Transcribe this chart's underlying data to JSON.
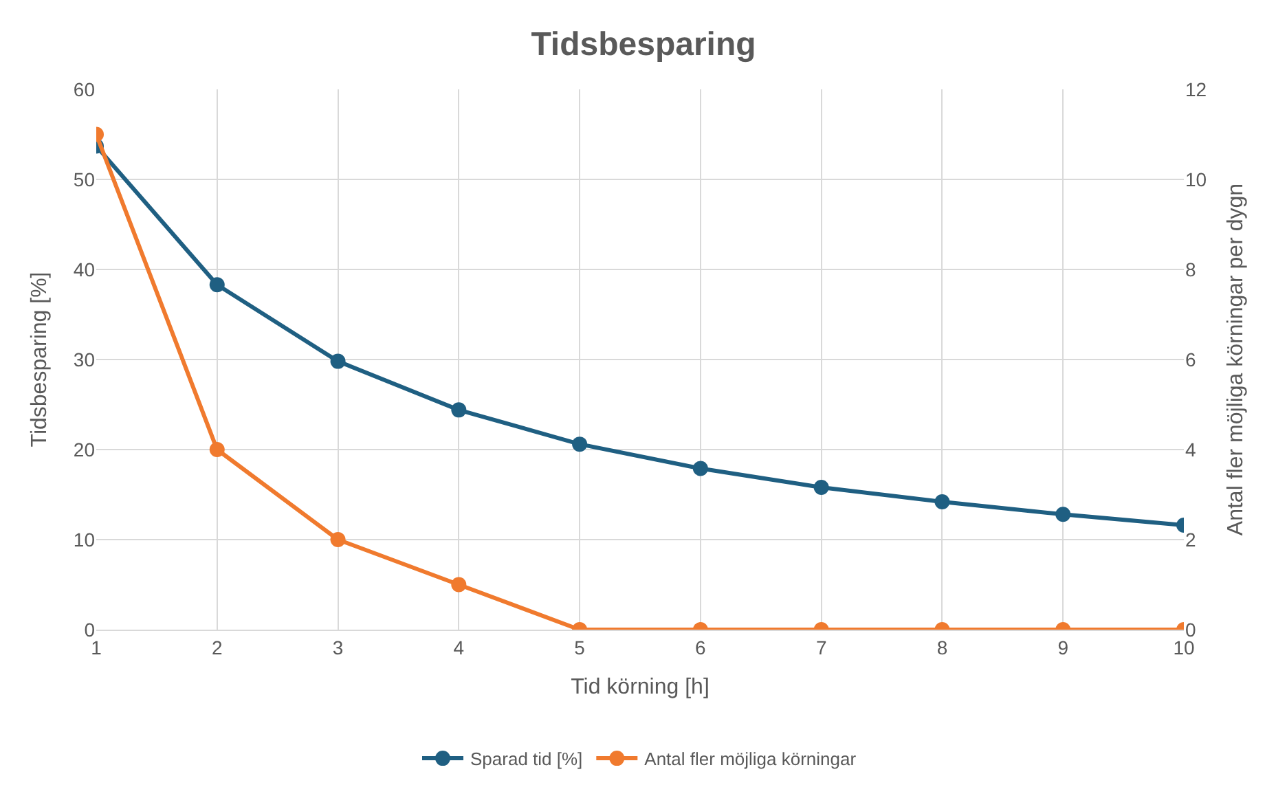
{
  "chart_data": {
    "type": "line",
    "title": "Tidsbesparing",
    "xlabel": "Tid körning [h]",
    "ylabel": "Tidsbesparing [%]",
    "y2label": "Antal fler möjliga körningar per dygn",
    "x": [
      1,
      2,
      3,
      4,
      5,
      6,
      7,
      8,
      9,
      10
    ],
    "series": [
      {
        "name": "Sparad tid [%]",
        "color": "#1f5f82",
        "values": [
          53.7,
          38.3,
          29.8,
          24.4,
          20.6,
          17.9,
          15.8,
          14.2,
          12.8,
          11.6
        ]
      },
      {
        "name": "Antal fler möjliga körningar",
        "color": "#f07a2e",
        "axis": "y2",
        "values": [
          11,
          4,
          2,
          1,
          0,
          0,
          0,
          0,
          0,
          0
        ]
      }
    ],
    "xlim": [
      1,
      10
    ],
    "xticks": [
      1,
      2,
      3,
      4,
      5,
      6,
      7,
      8,
      9,
      10
    ],
    "ylim": [
      0,
      60
    ],
    "yticks": [
      0,
      10,
      20,
      30,
      40,
      50,
      60
    ],
    "y2lim": [
      0,
      12
    ],
    "y2ticks": [
      0,
      2,
      4,
      6,
      8,
      10,
      12
    ],
    "grid": true,
    "legend": "bottom",
    "marker": "circle",
    "line_style": "solid"
  }
}
